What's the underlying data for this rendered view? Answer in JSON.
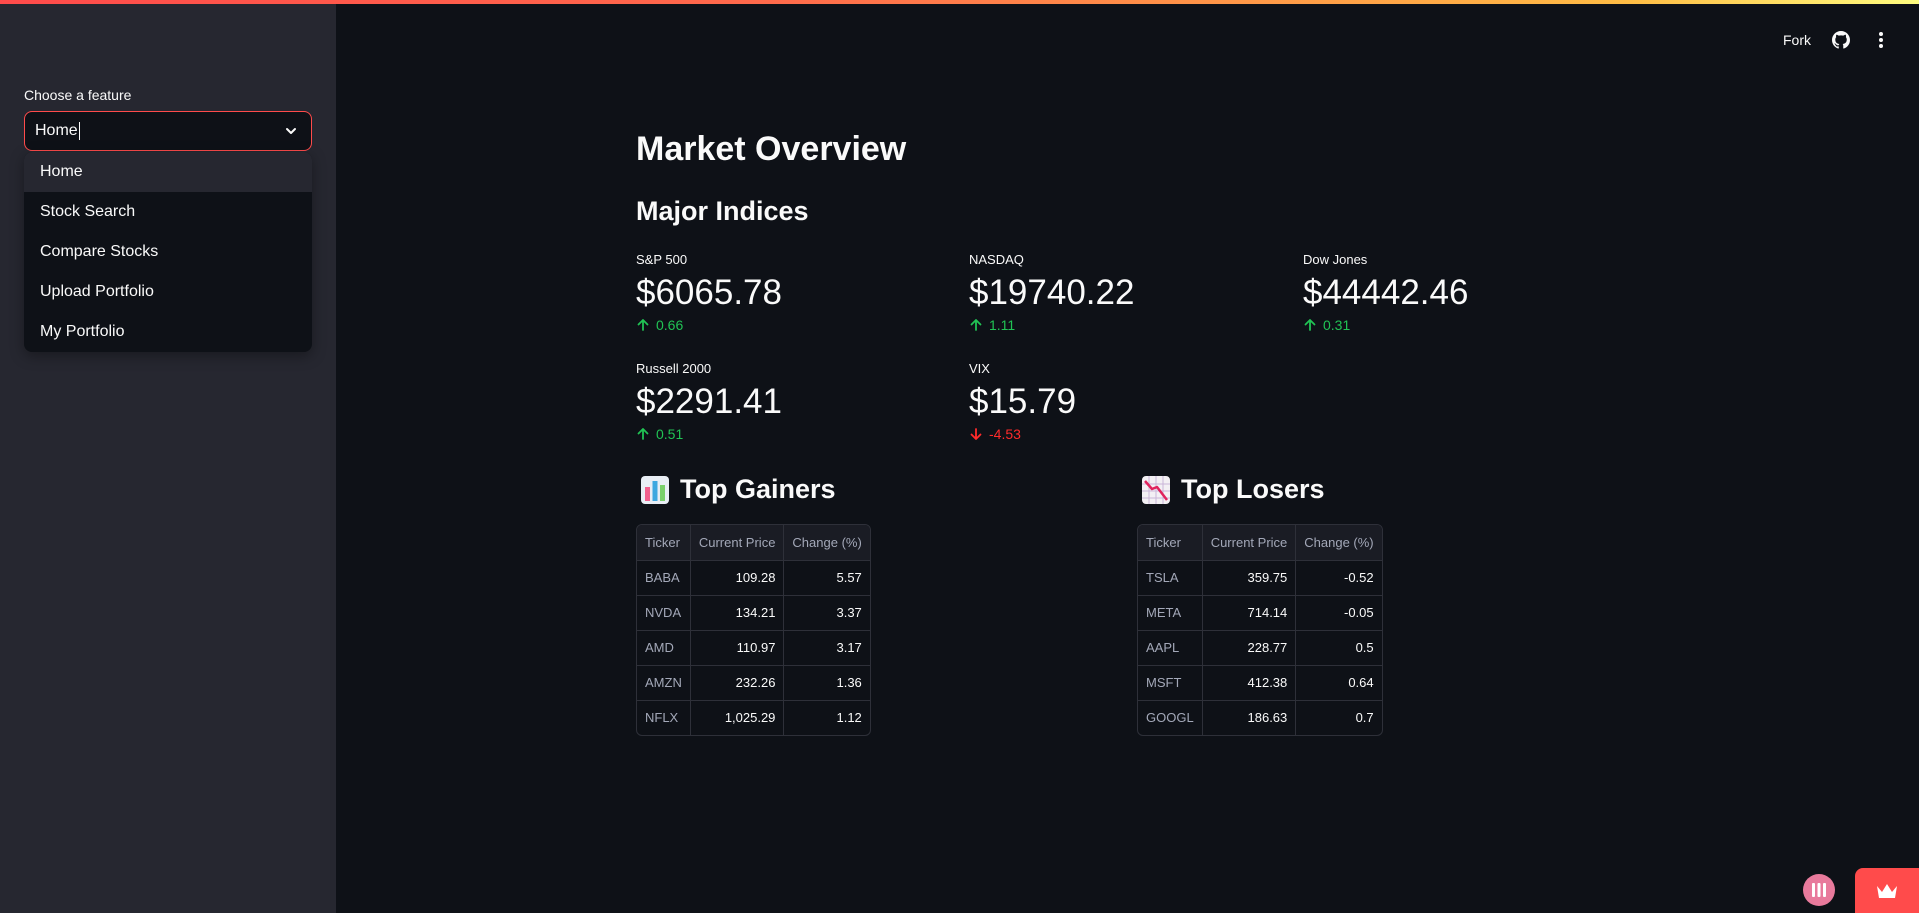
{
  "sidebar": {
    "select_label": "Choose a feature",
    "select_value": "Home",
    "options": [
      {
        "label": "Home",
        "selected": true
      },
      {
        "label": "Stock Search",
        "selected": false
      },
      {
        "label": "Compare Stocks",
        "selected": false
      },
      {
        "label": "Upload Portfolio",
        "selected": false
      },
      {
        "label": "My Portfolio",
        "selected": false
      }
    ]
  },
  "header": {
    "fork_label": "Fork",
    "github_icon": "github-icon",
    "menu_icon": "kebab-menu-icon"
  },
  "main": {
    "title": "Market Overview",
    "indices_heading": "Major Indices",
    "indices": [
      {
        "name": "S&P 500",
        "value": "$6065.78",
        "delta": "0.66",
        "direction": "up"
      },
      {
        "name": "NASDAQ",
        "value": "$19740.22",
        "delta": "1.11",
        "direction": "up"
      },
      {
        "name": "Dow Jones",
        "value": "$44442.46",
        "delta": "0.31",
        "direction": "up"
      },
      {
        "name": "Russell 2000",
        "value": "$2291.41",
        "delta": "0.51",
        "direction": "up"
      },
      {
        "name": "VIX",
        "value": "$15.79",
        "delta": "-4.53",
        "direction": "down"
      }
    ],
    "gainers": {
      "title": "Top Gainers",
      "icon": "bar-chart-emoji-icon",
      "columns": [
        "Ticker",
        "Current Price",
        "Change (%)"
      ],
      "rows": [
        [
          "BABA",
          "109.28",
          "5.57"
        ],
        [
          "NVDA",
          "134.21",
          "3.37"
        ],
        [
          "AMD",
          "110.97",
          "3.17"
        ],
        [
          "AMZN",
          "232.26",
          "1.36"
        ],
        [
          "NFLX",
          "1,025.29",
          "1.12"
        ]
      ]
    },
    "losers": {
      "title": "Top Losers",
      "icon": "chart-decreasing-emoji-icon",
      "columns": [
        "Ticker",
        "Current Price",
        "Change (%)"
      ],
      "rows": [
        [
          "TSLA",
          "359.75",
          "-0.52"
        ],
        [
          "META",
          "714.14",
          "-0.05"
        ],
        [
          "AAPL",
          "228.77",
          "0.5"
        ],
        [
          "MSFT",
          "412.38",
          "0.64"
        ],
        [
          "GOOGL",
          "186.63",
          "0.7"
        ]
      ]
    }
  },
  "colors": {
    "accent": "#ff4b4b",
    "positive": "#21c354",
    "negative": "#ff2b2b",
    "background": "#0e1117",
    "sidebar": "#262730"
  }
}
